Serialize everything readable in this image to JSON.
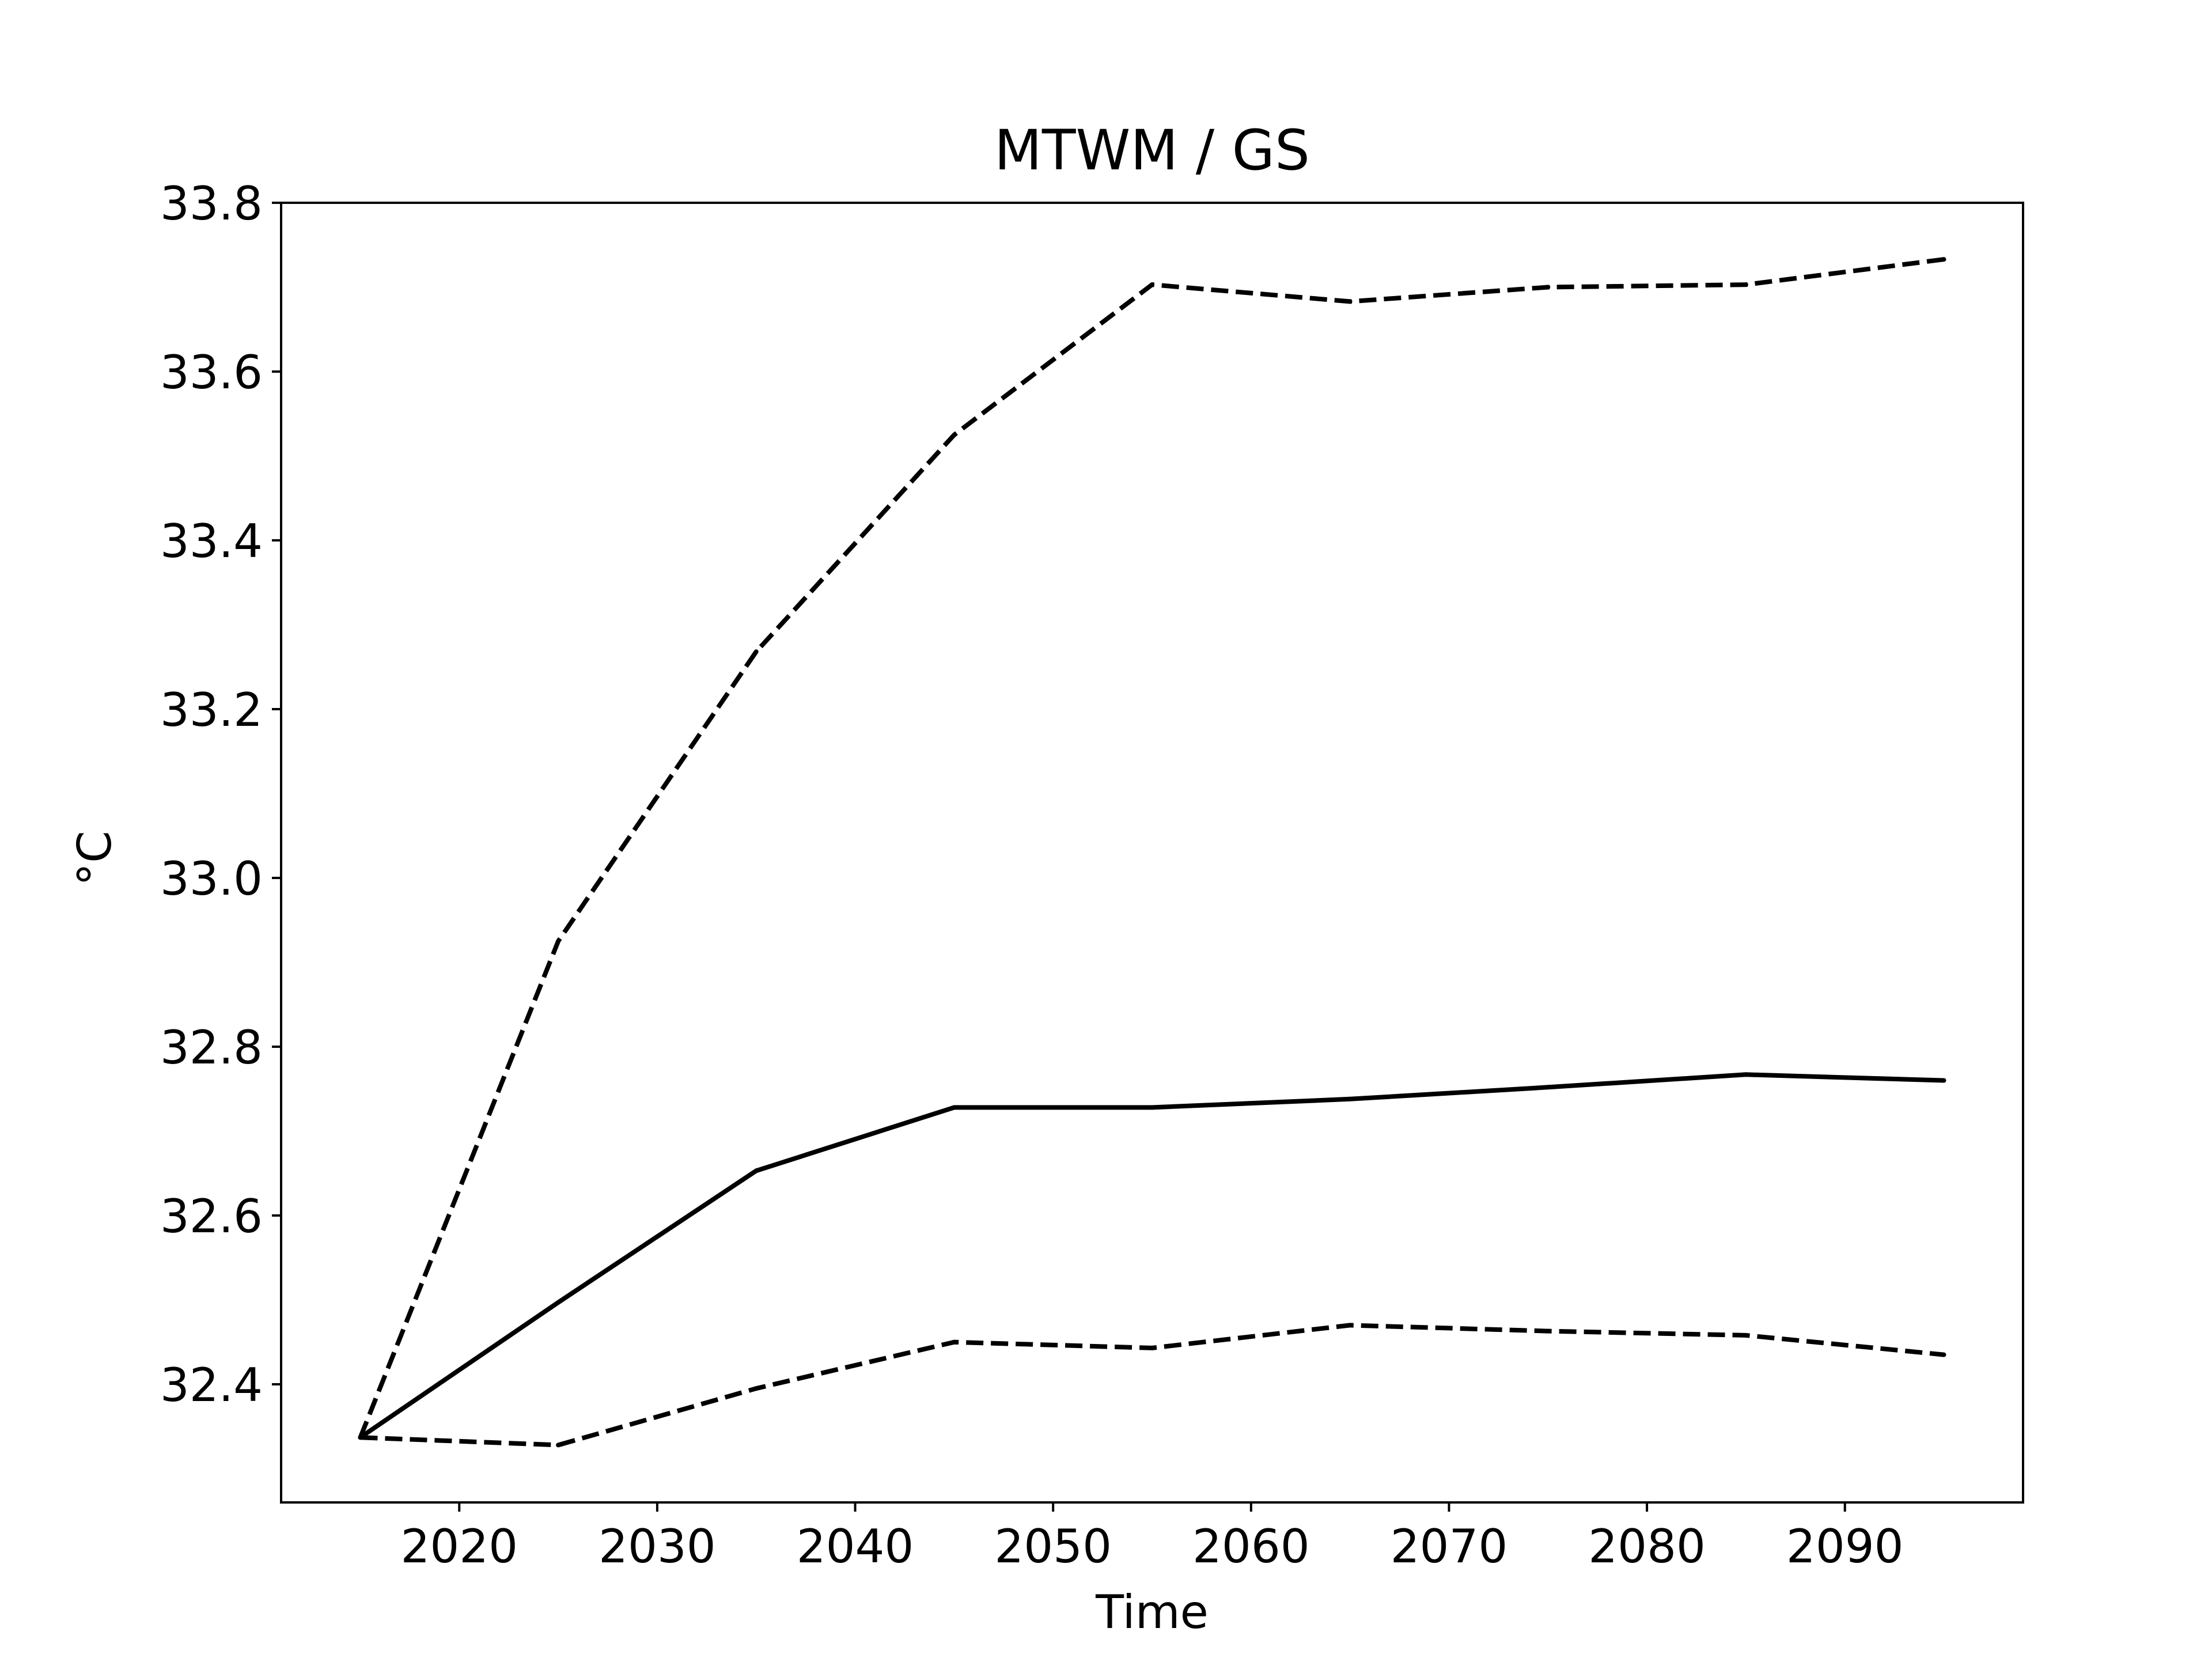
{
  "chart_data": {
    "type": "line",
    "title": "MTWM / GS",
    "xlabel": "Time",
    "ylabel": "°C",
    "x": [
      2015,
      2025,
      2035,
      2045,
      2055,
      2065,
      2075,
      2085,
      2095
    ],
    "xlim": [
      2011,
      2099
    ],
    "ylim": [
      32.26,
      33.8
    ],
    "xticks": [
      2020,
      2030,
      2040,
      2050,
      2060,
      2070,
      2080,
      2090
    ],
    "xtick_labels": [
      "2020",
      "2030",
      "2040",
      "2050",
      "2060",
      "2070",
      "2080",
      "2090"
    ],
    "yticks": [
      32.4,
      32.6,
      32.8,
      33.0,
      33.2,
      33.4,
      33.6,
      33.8
    ],
    "ytick_labels": [
      "32.4",
      "32.6",
      "32.8",
      "33.0",
      "33.2",
      "33.4",
      "33.6",
      "33.8"
    ],
    "grid": false,
    "series": [
      {
        "style": "solid",
        "color": "#000000",
        "values": [
          32.337,
          32.497,
          32.653,
          32.728,
          32.728,
          32.738,
          32.752,
          32.767,
          32.76
        ]
      },
      {
        "style": "dashed",
        "color": "#000000",
        "values": [
          32.337,
          32.925,
          33.268,
          33.525,
          33.703,
          33.683,
          33.7,
          33.703,
          33.733
        ]
      },
      {
        "style": "dashed",
        "color": "#000000",
        "values": [
          32.337,
          32.328,
          32.395,
          32.45,
          32.443,
          32.47,
          32.463,
          32.458,
          32.435
        ]
      }
    ]
  }
}
